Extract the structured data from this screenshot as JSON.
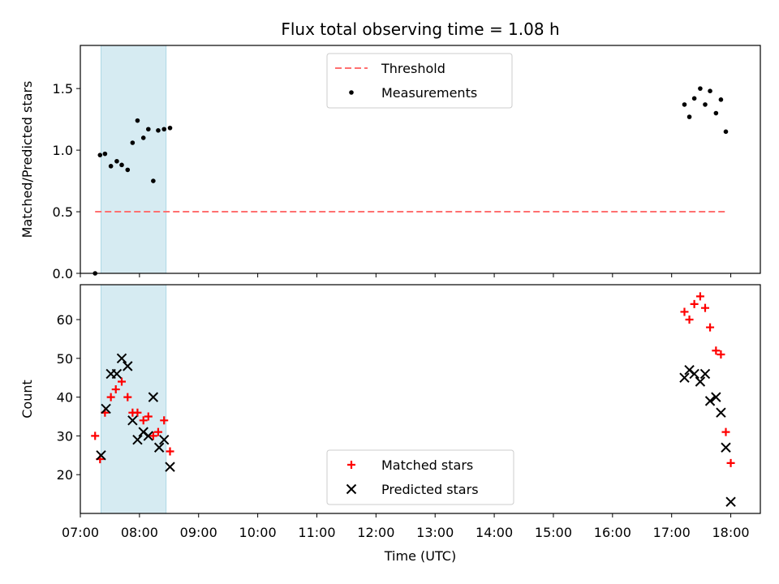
{
  "title": "Flux total observing time = 1.08 h",
  "colors": {
    "threshold": "#ff7070",
    "measurement": "#000000",
    "matched": "#ff0000",
    "predicted": "#000000",
    "observing_span": "#add8e6"
  },
  "chart_data": [
    {
      "type": "scatter",
      "panel": "top",
      "ylabel": "Matched/Predicted stars",
      "xlabel": "",
      "x_unit": "time of day (UTC)",
      "xlim": [
        "07:00",
        "18:30"
      ],
      "ylim": [
        0,
        1.85
      ],
      "y_ticks": [
        0.0,
        0.5,
        1.0,
        1.5
      ],
      "y_tick_labels": [
        "0.0",
        "0.5",
        "1.0",
        "1.5"
      ],
      "observing_span": [
        "07:21",
        "08:27"
      ],
      "legend": {
        "placement": "upper center",
        "entries": [
          "Threshold",
          "Measurements"
        ]
      },
      "threshold": {
        "name": "Threshold",
        "style": "dashed line",
        "x": [
          "07:15",
          "17:55"
        ],
        "y": 0.5
      },
      "series": [
        {
          "name": "Measurements",
          "marker": "dot",
          "x": [
            "07:15",
            "07:20",
            "07:25",
            "07:31",
            "07:37",
            "07:42",
            "07:48",
            "07:53",
            "07:58",
            "08:04",
            "08:09",
            "08:14",
            "08:19",
            "08:25",
            "08:31",
            "17:13",
            "17:18",
            "17:23",
            "17:29",
            "17:34",
            "17:39",
            "17:45",
            "17:50",
            "17:55"
          ],
          "y": [
            0.0,
            0.96,
            0.97,
            0.87,
            0.91,
            0.88,
            0.84,
            1.06,
            1.24,
            1.1,
            1.17,
            0.75,
            1.16,
            1.17,
            1.18,
            1.37,
            1.27,
            1.42,
            1.5,
            1.37,
            1.48,
            1.3,
            1.41,
            1.15
          ]
        }
      ]
    },
    {
      "type": "scatter",
      "panel": "bottom",
      "xlabel": "Time (UTC)",
      "ylabel": "Count",
      "xlim": [
        "07:00",
        "18:30"
      ],
      "x_ticks": [
        "07:00",
        "08:00",
        "09:00",
        "10:00",
        "11:00",
        "12:00",
        "13:00",
        "14:00",
        "15:00",
        "16:00",
        "17:00",
        "18:00"
      ],
      "ylim": [
        10,
        69
      ],
      "y_ticks": [
        20,
        30,
        40,
        50,
        60
      ],
      "observing_span": [
        "07:21",
        "08:27"
      ],
      "legend": {
        "placement": "lower center",
        "entries": [
          "Matched stars",
          "Predicted stars"
        ]
      },
      "series": [
        {
          "name": "Matched stars",
          "marker": "plus",
          "x": [
            "07:15",
            "07:20",
            "07:25",
            "07:31",
            "07:36",
            "07:42",
            "07:48",
            "07:53",
            "07:58",
            "08:04",
            "08:09",
            "08:14",
            "08:19",
            "08:25",
            "08:31",
            "17:13",
            "17:18",
            "17:23",
            "17:29",
            "17:34",
            "17:39",
            "17:45",
            "17:50",
            "17:55",
            "18:00"
          ],
          "y": [
            30,
            24,
            36,
            40,
            42,
            44,
            40,
            36,
            36,
            34,
            35,
            30,
            31,
            34,
            26,
            62,
            60,
            64,
            66,
            63,
            58,
            52,
            51,
            31,
            23
          ]
        },
        {
          "name": "Predicted stars",
          "marker": "x",
          "x": [
            "07:21",
            "07:26",
            "07:31",
            "07:37",
            "07:42",
            "07:48",
            "07:53",
            "07:58",
            "08:04",
            "08:09",
            "08:14",
            "08:20",
            "08:25",
            "08:31",
            "17:13",
            "17:18",
            "17:23",
            "17:29",
            "17:34",
            "17:39",
            "17:45",
            "17:50",
            "17:55",
            "18:00"
          ],
          "y": [
            25,
            37,
            46,
            46,
            50,
            48,
            34,
            29,
            31,
            30,
            40,
            27,
            29,
            22,
            45,
            47,
            46,
            44,
            46,
            39,
            40,
            36,
            27,
            13
          ]
        }
      ]
    }
  ]
}
